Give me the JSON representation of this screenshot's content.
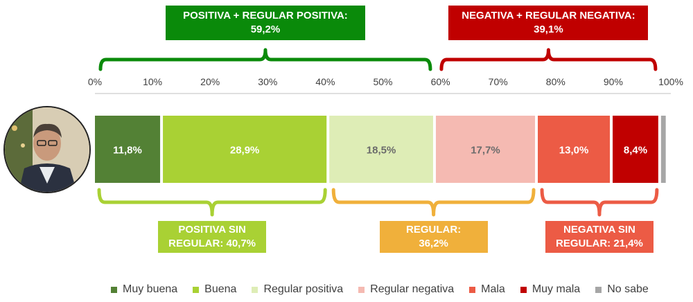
{
  "chart_data": {
    "type": "bar",
    "orientation": "horizontal-stacked",
    "x_ticks": [
      "0%",
      "10%",
      "20%",
      "30%",
      "40%",
      "50%",
      "60%",
      "70%",
      "80%",
      "90%",
      "100%"
    ],
    "xlim": [
      0,
      100
    ],
    "series": [
      {
        "name": "Muy buena",
        "value": 11.8,
        "label": "11,8%",
        "color": "#538135",
        "label_color": "#ffffff"
      },
      {
        "name": "Buena",
        "value": 28.9,
        "label": "28,9%",
        "color": "#a9d134",
        "label_color": "#ffffff"
      },
      {
        "name": "Regular positiva",
        "value": 18.5,
        "label": "18,5%",
        "color": "#deedb6",
        "label_color": "#6b6b6b"
      },
      {
        "name": "Regular negativa",
        "value": 17.7,
        "label": "17,7%",
        "color": "#f5bab2",
        "label_color": "#6b6b6b"
      },
      {
        "name": "Mala",
        "value": 13.0,
        "label": "13,0%",
        "color": "#ec5b45",
        "label_color": "#ffffff"
      },
      {
        "name": "Muy mala",
        "value": 8.4,
        "label": "8,4%",
        "color": "#c00000",
        "label_color": "#ffffff"
      },
      {
        "name": "No sabe",
        "value": 1.3,
        "label": "",
        "color": "#a6a6a6",
        "label_color": "#ffffff"
      }
    ],
    "top_groups": [
      {
        "line1": "POSITIVA + REGULAR POSITIVA:",
        "line2": "59,2%",
        "from": 0,
        "to": 59.2,
        "color": "#0a8a0a"
      },
      {
        "line1": "NEGATIVA + REGULAR NEGATIVA:",
        "line2": "39,1%",
        "from": 59.2,
        "to": 98.3,
        "color": "#c00000"
      }
    ],
    "bottom_groups": [
      {
        "line1": "POSITIVA SIN",
        "line2": "REGULAR: 40,7%",
        "from": 0,
        "to": 40.7,
        "color": "#a9d134"
      },
      {
        "line1": "REGULAR:",
        "line2": "36,2%",
        "from": 40.7,
        "to": 76.9,
        "color": "#f0b03b"
      },
      {
        "line1": "NEGATIVA SIN",
        "line2": "REGULAR: 21,4%",
        "from": 76.9,
        "to": 98.3,
        "color": "#ec5b45"
      }
    ]
  }
}
